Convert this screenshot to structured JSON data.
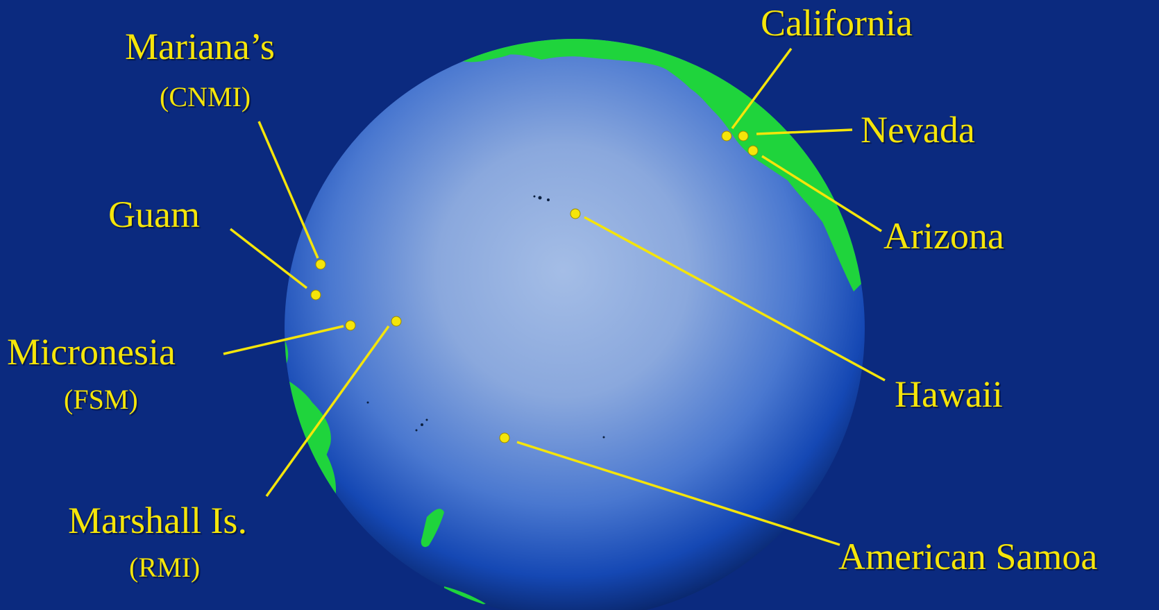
{
  "labels": {
    "marianas": "Mariana’s",
    "cnmi": "(CNMI)",
    "guam": "Guam",
    "micronesia": "Micronesia",
    "fsm": "(FSM)",
    "marshall": "Marshall Is.",
    "rmi": "(RMI)",
    "california": "California",
    "nevada": "Nevada",
    "arizona": "Arizona",
    "hawaii": "Hawaii",
    "american_samoa": "American Samoa"
  },
  "colors": {
    "background": "#0b2a7f",
    "label": "#f5e50a",
    "land": "#1fd43c",
    "ocean_center": "#9db6e2",
    "ocean_edge": "#0a3aa8"
  }
}
